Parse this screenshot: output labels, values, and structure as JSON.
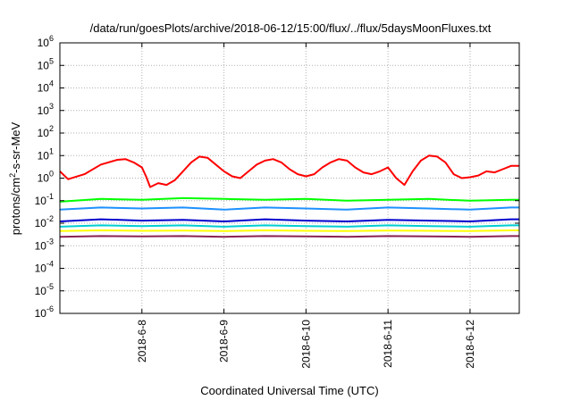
{
  "chart_data": {
    "type": "line",
    "title": "/data/run/goesPlots/archive/2018-06-12/15:00/flux/../flux/5daysMoonFluxes.txt",
    "xlabel": "Coordinated Universal Time (UTC)",
    "ylabel": "protons/cm²-s-sr-MeV",
    "ylabel_parts": {
      "base": "protons/cm",
      "sup": "2",
      "rest": "-s-sr-MeV"
    },
    "yscale": "log",
    "ylim_exponents": [
      -6,
      6
    ],
    "ytick_exponents": [
      -6,
      -5,
      -4,
      -3,
      -2,
      -1,
      0,
      1,
      2,
      3,
      4,
      5,
      6
    ],
    "ytick_base": "10",
    "xlim": [
      0,
      5.6
    ],
    "xticks": [
      {
        "x": 1,
        "label": "2018-6-8"
      },
      {
        "x": 2,
        "label": "2018-6-9"
      },
      {
        "x": 3,
        "label": "2018-6-10"
      },
      {
        "x": 4,
        "label": "2018-6-11"
      },
      {
        "x": 5,
        "label": "2018-6-12"
      }
    ],
    "grid": true,
    "series": [
      {
        "color": "#ff0000",
        "x": [
          0,
          0.1,
          0.3,
          0.5,
          0.7,
          0.8,
          0.9,
          1.0,
          1.05,
          1.1,
          1.2,
          1.3,
          1.4,
          1.5,
          1.6,
          1.7,
          1.8,
          1.9,
          2.0,
          2.1,
          2.2,
          2.3,
          2.4,
          2.5,
          2.6,
          2.7,
          2.8,
          2.9,
          3.0,
          3.1,
          3.2,
          3.3,
          3.4,
          3.5,
          3.6,
          3.7,
          3.8,
          3.9,
          4.0,
          4.1,
          4.2,
          4.3,
          4.4,
          4.5,
          4.6,
          4.7,
          4.8,
          4.9,
          5.0,
          5.1,
          5.2,
          5.3,
          5.4,
          5.5,
          5.6
        ],
        "values": [
          2.0,
          0.9,
          1.5,
          4,
          6.5,
          7,
          5,
          3,
          1.2,
          0.4,
          0.6,
          0.5,
          0.8,
          2,
          5,
          9,
          8,
          4,
          2,
          1.2,
          1,
          2,
          4,
          6,
          7,
          5,
          2.5,
          1.5,
          1.2,
          1.5,
          3,
          5,
          7,
          6,
          3,
          1.8,
          1.5,
          2,
          3,
          1,
          0.5,
          2,
          6,
          10,
          9,
          5,
          1.5,
          1,
          1.1,
          1.3,
          2,
          1.8,
          2.5,
          3.5,
          3.5
        ]
      },
      {
        "color": "#00ff00",
        "x": [
          0,
          0.5,
          1,
          1.5,
          2,
          2.5,
          3,
          3.5,
          4,
          4.5,
          5,
          5.5,
          5.6
        ],
        "values": [
          0.09,
          0.12,
          0.11,
          0.13,
          0.12,
          0.11,
          0.12,
          0.1,
          0.11,
          0.12,
          0.1,
          0.11,
          0.11
        ]
      },
      {
        "color": "#1e90ff",
        "x": [
          0,
          0.5,
          1,
          1.5,
          2,
          2.5,
          3,
          3.5,
          4,
          4.5,
          5,
          5.5,
          5.6
        ],
        "values": [
          0.04,
          0.05,
          0.045,
          0.05,
          0.04,
          0.05,
          0.045,
          0.04,
          0.05,
          0.045,
          0.04,
          0.05,
          0.05
        ]
      },
      {
        "color": "#0000cd",
        "x": [
          0,
          0.5,
          1,
          1.5,
          2,
          2.5,
          3,
          3.5,
          4,
          4.5,
          5,
          5.5,
          5.6
        ],
        "values": [
          0.012,
          0.015,
          0.013,
          0.014,
          0.012,
          0.015,
          0.013,
          0.012,
          0.014,
          0.013,
          0.012,
          0.015,
          0.015
        ]
      },
      {
        "color": "#00ced1",
        "x": [
          0,
          0.5,
          1,
          1.5,
          2,
          2.5,
          3,
          3.5,
          4,
          4.5,
          5,
          5.5,
          5.6
        ],
        "values": [
          0.007,
          0.008,
          0.0075,
          0.008,
          0.007,
          0.008,
          0.0075,
          0.007,
          0.008,
          0.0075,
          0.007,
          0.008,
          0.008
        ]
      },
      {
        "color": "#ffff00",
        "x": [
          0,
          0.5,
          1,
          1.5,
          2,
          2.5,
          3,
          3.5,
          4,
          4.5,
          5,
          5.5,
          5.6
        ],
        "values": [
          0.0045,
          0.0048,
          0.0046,
          0.0047,
          0.0045,
          0.0048,
          0.0046,
          0.0045,
          0.0047,
          0.0046,
          0.0045,
          0.0048,
          0.0048
        ]
      },
      {
        "color": "#8b2252",
        "x": [
          0,
          0.5,
          1,
          1.5,
          2,
          2.5,
          3,
          3.5,
          4,
          4.5,
          5,
          5.5,
          5.6
        ],
        "values": [
          0.0025,
          0.0027,
          0.0026,
          0.0027,
          0.0025,
          0.0027,
          0.0026,
          0.0025,
          0.0027,
          0.0026,
          0.0025,
          0.0027,
          0.0027
        ]
      }
    ]
  }
}
